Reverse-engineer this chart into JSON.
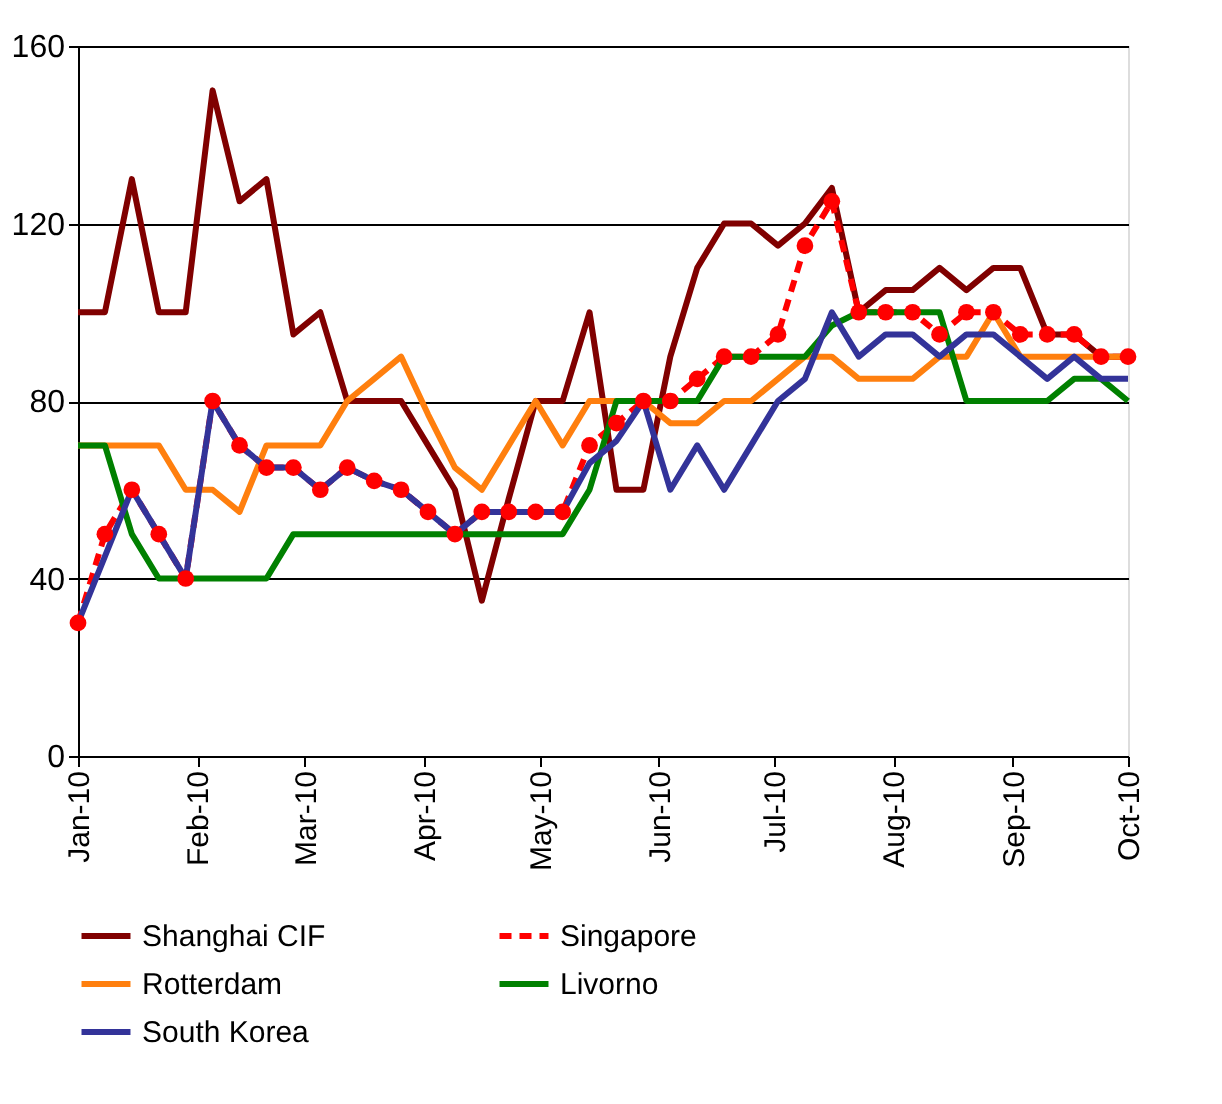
{
  "chart_data": {
    "type": "line",
    "x": [
      "2010-01-01",
      "2010-01-08",
      "2010-01-15",
      "2010-01-22",
      "2010-01-29",
      "2010-02-05",
      "2010-02-12",
      "2010-02-19",
      "2010-02-26",
      "2010-03-05",
      "2010-03-12",
      "2010-03-19",
      "2010-03-26",
      "2010-04-02",
      "2010-04-09",
      "2010-04-16",
      "2010-04-23",
      "2010-04-30",
      "2010-05-07",
      "2010-05-14",
      "2010-05-21",
      "2010-05-28",
      "2010-06-04",
      "2010-06-11",
      "2010-06-18",
      "2010-06-25",
      "2010-07-02",
      "2010-07-09",
      "2010-07-16",
      "2010-07-23",
      "2010-07-30",
      "2010-08-06",
      "2010-08-13",
      "2010-08-20",
      "2010-08-27",
      "2010-09-03",
      "2010-09-10",
      "2010-09-17",
      "2010-09-24",
      "2010-10-01"
    ],
    "series": [
      {
        "name": "Shanghai CIF",
        "color": "#800000",
        "line_style": "solid",
        "marker": "none",
        "values": [
          100,
          100,
          130,
          100,
          100,
          150,
          125,
          130,
          95,
          100,
          80,
          80,
          80,
          70,
          60,
          35,
          58,
          80,
          80,
          100,
          60,
          60,
          90,
          110,
          120,
          120,
          115,
          120,
          128,
          100,
          105,
          105,
          110,
          105,
          110,
          110,
          95,
          95,
          90,
          90
        ]
      },
      {
        "name": "Singapore",
        "color": "#ff0000",
        "line_style": "dashed",
        "marker": "circle",
        "values": [
          30,
          50,
          60,
          50,
          40,
          80,
          70,
          65,
          65,
          60,
          65,
          62,
          60,
          55,
          50,
          55,
          55,
          55,
          55,
          70,
          75,
          80,
          80,
          85,
          90,
          90,
          95,
          115,
          125,
          100,
          100,
          100,
          95,
          100,
          100,
          95,
          95,
          95,
          90,
          90
        ]
      },
      {
        "name": "Rotterdam",
        "color": "#ff7f0e",
        "line_style": "solid",
        "marker": "none",
        "values": [
          70,
          70,
          70,
          70,
          60,
          60,
          55,
          70,
          70,
          70,
          80,
          85,
          90,
          77,
          65,
          60,
          70,
          80,
          70,
          80,
          80,
          80,
          75,
          75,
          80,
          80,
          85,
          90,
          90,
          85,
          85,
          85,
          90,
          90,
          100,
          90,
          90,
          90,
          90,
          90
        ]
      },
      {
        "name": "Livorno",
        "color": "#008000",
        "line_style": "solid",
        "marker": "none",
        "values": [
          70,
          70,
          50,
          40,
          40,
          40,
          40,
          40,
          50,
          50,
          50,
          50,
          50,
          50,
          50,
          50,
          50,
          50,
          50,
          60,
          80,
          80,
          80,
          80,
          90,
          90,
          90,
          90,
          97,
          100,
          100,
          100,
          100,
          80,
          80,
          80,
          80,
          85,
          85,
          80
        ]
      },
      {
        "name": "South Korea",
        "color": "#333399",
        "line_style": "solid",
        "marker": "none",
        "values": [
          30,
          45,
          60,
          50,
          40,
          80,
          70,
          65,
          65,
          60,
          65,
          62,
          60,
          55,
          50,
          55,
          55,
          55,
          55,
          66,
          71,
          80,
          60,
          70,
          60,
          70,
          80,
          85,
          100,
          90,
          95,
          95,
          90,
          95,
          95,
          90,
          85,
          90,
          85,
          85
        ]
      }
    ],
    "xlim": [
      "2010-01-01",
      "2010-10-01"
    ],
    "xticks": [
      {
        "value": "2010-01-01",
        "label": "Jan-10"
      },
      {
        "value": "2010-02-01",
        "label": "Feb-10"
      },
      {
        "value": "2010-03-01",
        "label": "Mar-10"
      },
      {
        "value": "2010-04-01",
        "label": "Apr-10"
      },
      {
        "value": "2010-05-01",
        "label": "May-10"
      },
      {
        "value": "2010-06-01",
        "label": "Jun-10"
      },
      {
        "value": "2010-07-01",
        "label": "Jul-10"
      },
      {
        "value": "2010-08-01",
        "label": "Aug-10"
      },
      {
        "value": "2010-09-01",
        "label": "Sep-10"
      },
      {
        "value": "2010-10-01",
        "label": "Oct-10"
      }
    ],
    "ylim": [
      0,
      160
    ],
    "yticks": [
      0,
      40,
      80,
      120,
      160
    ],
    "grid": "y",
    "legend": "bottom"
  }
}
